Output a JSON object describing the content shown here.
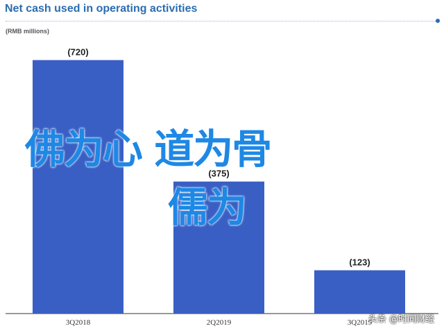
{
  "header": {
    "title": "Net cash used in operating activities",
    "subtitle": "(RMB millions)"
  },
  "chart_data": {
    "type": "bar",
    "title": "Net cash used in operating activities",
    "subtitle": "(RMB millions)",
    "categories": [
      "3Q2018",
      "2Q2019",
      "3Q2019"
    ],
    "values": [
      -720,
      -375,
      -123
    ],
    "data_labels": [
      "(720)",
      "(375)",
      "(123)"
    ],
    "xlabel": "",
    "ylabel": "",
    "ylim": [
      0,
      800
    ],
    "grid": false,
    "bar_color": "#3a5fc4",
    "label_color": "#222222"
  },
  "overlay": {
    "line1": "佛为心 道为骨",
    "line2": "儒为",
    "color": "#1e88e5"
  },
  "watermark": {
    "text": "头条 @时间财经"
  }
}
